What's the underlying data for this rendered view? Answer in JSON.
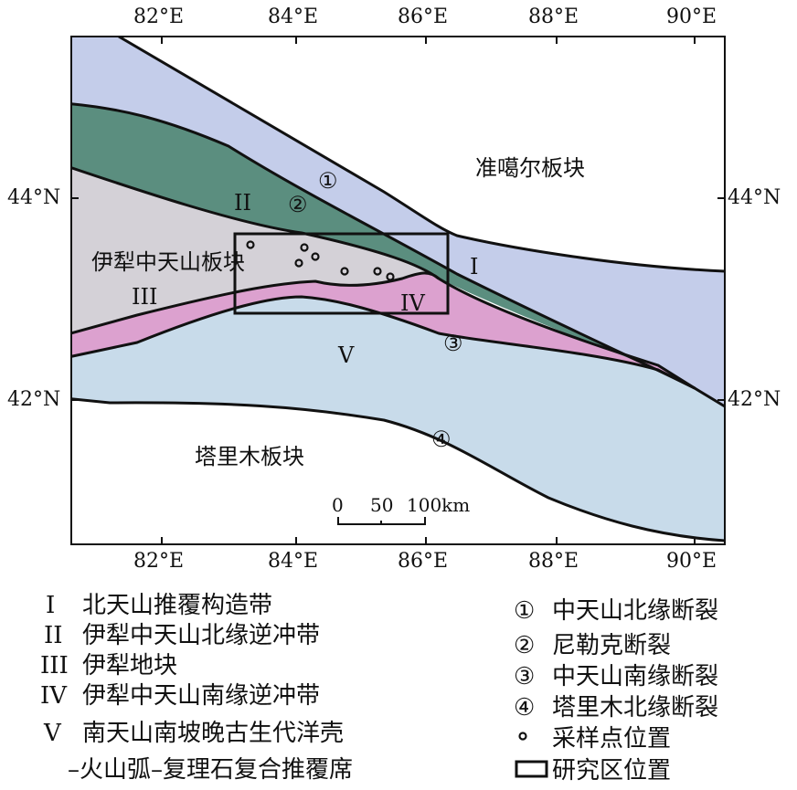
{
  "axes": {
    "lon_ticks": [
      "82°E",
      "84°E",
      "86°E",
      "88°E",
      "90°E"
    ],
    "lat_ticks": [
      "44°N",
      "42°N"
    ]
  },
  "map_labels": {
    "junggar": "准噶尔板块",
    "yili": "伊犁中天山板块",
    "tarim": "塔里木板块",
    "zone_I": "I",
    "zone_II": "II",
    "zone_III": "III",
    "zone_IV": "IV",
    "zone_V": "V",
    "fault_1": "①",
    "fault_2": "②",
    "fault_3": "③",
    "fault_4": "④"
  },
  "scale_bar": {
    "ticks": [
      "0",
      "50",
      "100km"
    ]
  },
  "legend_zones": [
    {
      "symbol": "I",
      "label": "北天山推覆构造带"
    },
    {
      "symbol": "II",
      "label": "伊犁中天山北缘逆冲带"
    },
    {
      "symbol": "III",
      "label": "伊犁地块"
    },
    {
      "symbol": "IV",
      "label": "伊犁中天山南缘逆冲带"
    },
    {
      "symbol": "V",
      "label": "南天山南坡晚古生代洋壳",
      "label2": "–火山弧–复理石复合推覆席"
    }
  ],
  "legend_symbols": [
    {
      "symbol": "①",
      "label": "中天山北缘断裂"
    },
    {
      "symbol": "②",
      "label": "尼勒克断裂"
    },
    {
      "symbol": "③",
      "label": "中天山南缘断裂"
    },
    {
      "symbol": "④",
      "label": "塔里木北缘断裂"
    },
    {
      "symbol": "sample-point",
      "label": "采样点位置"
    },
    {
      "symbol": "study-area",
      "label": "研究区位置"
    }
  ],
  "colors": {
    "zone_I_blue": "#c4cdea",
    "zone_II_green": "#5b8e7f",
    "zone_III_grey": "#d4d1d7",
    "zone_IV_pink": "#dca1cf",
    "zone_V_blue": "#c8dbea"
  }
}
